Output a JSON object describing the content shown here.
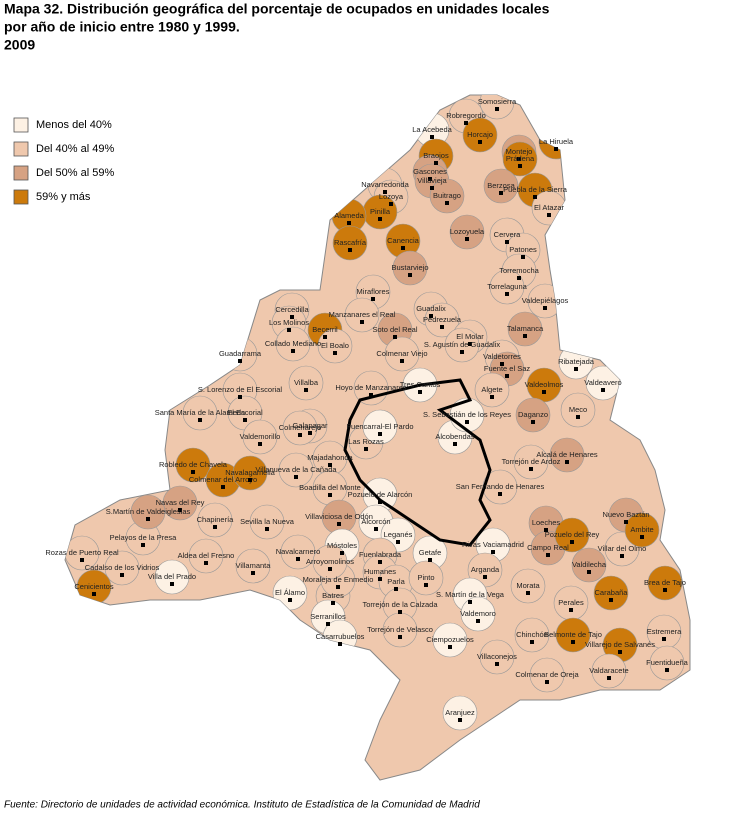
{
  "header": {
    "title_lines": [
      "Mapa 32. Distribución geográfica del porcentaje de ocupados en unidades locales",
      "por año de inicio entre 1980 y 1999.",
      "2009"
    ]
  },
  "legend": {
    "items": [
      {
        "label": "Menos del 40%",
        "color": "#fdf1e4"
      },
      {
        "label": "Del 40% al 49%",
        "color": "#efc8ad"
      },
      {
        "label": "Del 50% al 59%",
        "color": "#d6a283"
      },
      {
        "label": "59% y más",
        "color": "#cc7a0c"
      }
    ]
  },
  "map": {
    "municipalities": [
      {
        "name": "Somosierra",
        "class": 1
      },
      {
        "name": "Robregordo",
        "class": 1
      },
      {
        "name": "La Acebeda",
        "class": 0
      },
      {
        "name": "Horcajo",
        "class": 3
      },
      {
        "name": "La Hiruela",
        "class": 3
      },
      {
        "name": "Montejo",
        "class": 2
      },
      {
        "name": "Prádena",
        "class": 3
      },
      {
        "name": "Braojos",
        "class": 3
      },
      {
        "name": "Gascones",
        "class": 2
      },
      {
        "name": "Villavieja",
        "class": 2
      },
      {
        "name": "Navarredonda",
        "class": 1
      },
      {
        "name": "Lozoya",
        "class": 1
      },
      {
        "name": "Buitrago",
        "class": 2
      },
      {
        "name": "Berzosa",
        "class": 2
      },
      {
        "name": "Puebla de la Sierra",
        "class": 3
      },
      {
        "name": "El Atazar",
        "class": 1
      },
      {
        "name": "Pinilla",
        "class": 3
      },
      {
        "name": "Alameda",
        "class": 3
      },
      {
        "name": "Rascafría",
        "class": 3
      },
      {
        "name": "Canencia",
        "class": 3
      },
      {
        "name": "Lozoyuela",
        "class": 2
      },
      {
        "name": "Cervera",
        "class": 1
      },
      {
        "name": "Patones",
        "class": 1
      },
      {
        "name": "Bustarviejo",
        "class": 2
      },
      {
        "name": "Torremocha",
        "class": 1
      },
      {
        "name": "Torrelaguna",
        "class": 1
      },
      {
        "name": "Valdepiélagos",
        "class": 1
      },
      {
        "name": "Miraflores",
        "class": 1
      },
      {
        "name": "Guadalix",
        "class": 1
      },
      {
        "name": "Pedrezuela",
        "class": 1
      },
      {
        "name": "El Molar",
        "class": 1
      },
      {
        "name": "Talamanca",
        "class": 2
      },
      {
        "name": "Soto del Real",
        "class": 2
      },
      {
        "name": "Manzanares el Real",
        "class": 1
      },
      {
        "name": "Cercedilla",
        "class": 1
      },
      {
        "name": "Los Molinos",
        "class": 1
      },
      {
        "name": "Becerril",
        "class": 3
      },
      {
        "name": "Collado Mediano",
        "class": 1
      },
      {
        "name": "Guadarrama",
        "class": 1
      },
      {
        "name": "El Boalo",
        "class": 1
      },
      {
        "name": "Colmenar Viejo",
        "class": 1
      },
      {
        "name": "S. Agustín de Guadalix",
        "class": 1
      },
      {
        "name": "Valdetorres",
        "class": 1
      },
      {
        "name": "Fuente el Saz",
        "class": 2
      },
      {
        "name": "Valdeolmos",
        "class": 3
      },
      {
        "name": "Ribatejada",
        "class": 0
      },
      {
        "name": "Valdeavero",
        "class": 0
      },
      {
        "name": "Tres Cantos",
        "class": 0
      },
      {
        "name": "Hoyo de Manzanares",
        "class": 1
      },
      {
        "name": "Villalba",
        "class": 1
      },
      {
        "name": "Galapagar",
        "class": 1
      },
      {
        "name": "S. Lorenzo de El Escorial",
        "class": 1
      },
      {
        "name": "El Escorial",
        "class": 1
      },
      {
        "name": "Santa María de la Alameda",
        "class": 1
      },
      {
        "name": "Valdemorillo",
        "class": 1
      },
      {
        "name": "Colmenarejo",
        "class": 1
      },
      {
        "name": "Las Rozas",
        "class": 1
      },
      {
        "name": "Alcobendas",
        "class": 0
      },
      {
        "name": "S. Sebastián de los Reyes",
        "class": 0
      },
      {
        "name": "Algete",
        "class": 1
      },
      {
        "name": "Daganzo",
        "class": 2
      },
      {
        "name": "Meco",
        "class": 1
      },
      {
        "name": "Alcalá de Henares",
        "class": 2
      },
      {
        "name": "Torrejón de Ardoz",
        "class": 1
      },
      {
        "name": "Fuencarral-El Pardo",
        "class": 0
      },
      {
        "name": "Robledo de Chavela",
        "class": 3
      },
      {
        "name": "Colmenar del Arroyo",
        "class": 3
      },
      {
        "name": "Navalagamella",
        "class": 3
      },
      {
        "name": "Villanueva de la Cañada",
        "class": 1
      },
      {
        "name": "Majadahonda",
        "class": 1
      },
      {
        "name": "Boadilla del Monte",
        "class": 1
      },
      {
        "name": "Pozuelo de Alarcón",
        "class": 0
      },
      {
        "name": "Villaviciosa de Odón",
        "class": 2
      },
      {
        "name": "Alcorcón",
        "class": 0
      },
      {
        "name": "Leganés",
        "class": 0
      },
      {
        "name": "Getafe",
        "class": 0
      },
      {
        "name": "Móstoles",
        "class": 0
      },
      {
        "name": "Fuenlabrada",
        "class": 1
      },
      {
        "name": "Humanes",
        "class": 1
      },
      {
        "name": "Parla",
        "class": 1
      },
      {
        "name": "Pinto",
        "class": 1
      },
      {
        "name": "Rivas Vaciamadrid",
        "class": 0
      },
      {
        "name": "Arganda",
        "class": 1
      },
      {
        "name": "San Fernando de Henares",
        "class": 1
      },
      {
        "name": "Loeches",
        "class": 2
      },
      {
        "name": "Campo Real",
        "class": 2
      },
      {
        "name": "Pozuelo del Rey",
        "class": 3
      },
      {
        "name": "Nuevo Baztán",
        "class": 2
      },
      {
        "name": "Villar del Olmo",
        "class": 1
      },
      {
        "name": "Ambite",
        "class": 3
      },
      {
        "name": "Morata",
        "class": 1
      },
      {
        "name": "Perales",
        "class": 1
      },
      {
        "name": "Valdilecha",
        "class": 2
      },
      {
        "name": "Chinchón",
        "class": 1
      },
      {
        "name": "Colmenar de Oreja",
        "class": 1
      },
      {
        "name": "Villaconejos",
        "class": 1
      },
      {
        "name": "Aranjuez",
        "class": 0
      },
      {
        "name": "Ciempozuelos",
        "class": 0
      },
      {
        "name": "S. Martín de la Vega",
        "class": 0
      },
      {
        "name": "Belmonte de Tajo",
        "class": 3
      },
      {
        "name": "Villarejo de Salvanés",
        "class": 3
      },
      {
        "name": "Estremera",
        "class": 1
      },
      {
        "name": "Fuentidueña",
        "class": 1
      },
      {
        "name": "Valdaracete",
        "class": 1
      },
      {
        "name": "Brea de Tajo",
        "class": 3
      },
      {
        "name": "Carabaña",
        "class": 3
      },
      {
        "name": "Chapinería",
        "class": 1
      },
      {
        "name": "Navas del Rey",
        "class": 2
      },
      {
        "name": "Pelayos de la Presa",
        "class": 1
      },
      {
        "name": "S.Martín de Valdeiglesias",
        "class": 2
      },
      {
        "name": "Cadalso de los Vidrios",
        "class": 1
      },
      {
        "name": "Cenicientos",
        "class": 3
      },
      {
        "name": "Rozas de Puerto Real",
        "class": 1
      },
      {
        "name": "Villa del Prado",
        "class": 0
      },
      {
        "name": "Aldea del Fresno",
        "class": 1
      },
      {
        "name": "Villamanta",
        "class": 1
      },
      {
        "name": "Navalcarnero",
        "class": 1
      },
      {
        "name": "Sevilla la Nueva",
        "class": 1
      },
      {
        "name": "El Álamo",
        "class": 0
      },
      {
        "name": "Batres",
        "class": 1
      },
      {
        "name": "Serranillos",
        "class": 0
      },
      {
        "name": "Moraleja de Enmedio",
        "class": 1
      },
      {
        "name": "Arroyomolinos",
        "class": 1
      },
      {
        "name": "Casarrubuelos",
        "class": 0
      },
      {
        "name": "Torrejón de la Calzada",
        "class": 1
      },
      {
        "name": "Torrejón de Velasco",
        "class": 1
      },
      {
        "name": "Valdemoro",
        "class": 0
      }
    ]
  },
  "footer": {
    "source": "Fuente: Directorio de unidades de actividad económica. Instituto de Estadística de la Comunidad de Madrid"
  }
}
